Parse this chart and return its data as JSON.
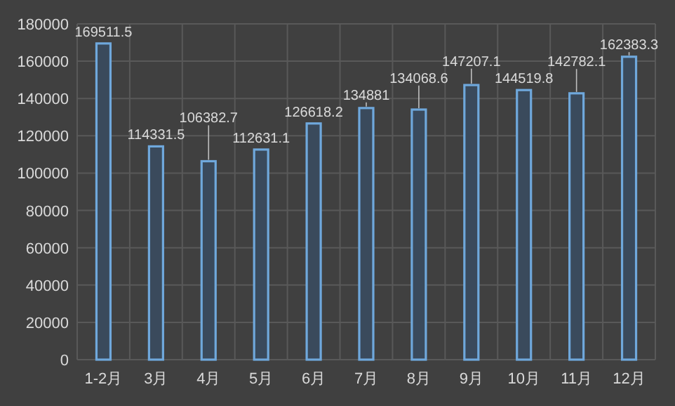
{
  "chart_data": {
    "type": "bar",
    "categories": [
      "1-2月",
      "3月",
      "4月",
      "5月",
      "6月",
      "7月",
      "8月",
      "9月",
      "10月",
      "11月",
      "12月"
    ],
    "values": [
      169511.5,
      114331.5,
      106382.7,
      112631.1,
      126618.2,
      134881,
      134068.6,
      147207.1,
      144519.8,
      142782.1,
      162383.3
    ],
    "color": "#6fa8dc",
    "ylim": [
      0,
      180000
    ],
    "yticks": [
      0,
      20000,
      40000,
      60000,
      80000,
      100000,
      120000,
      140000,
      160000,
      180000
    ],
    "grid": true,
    "data_labels": true
  }
}
